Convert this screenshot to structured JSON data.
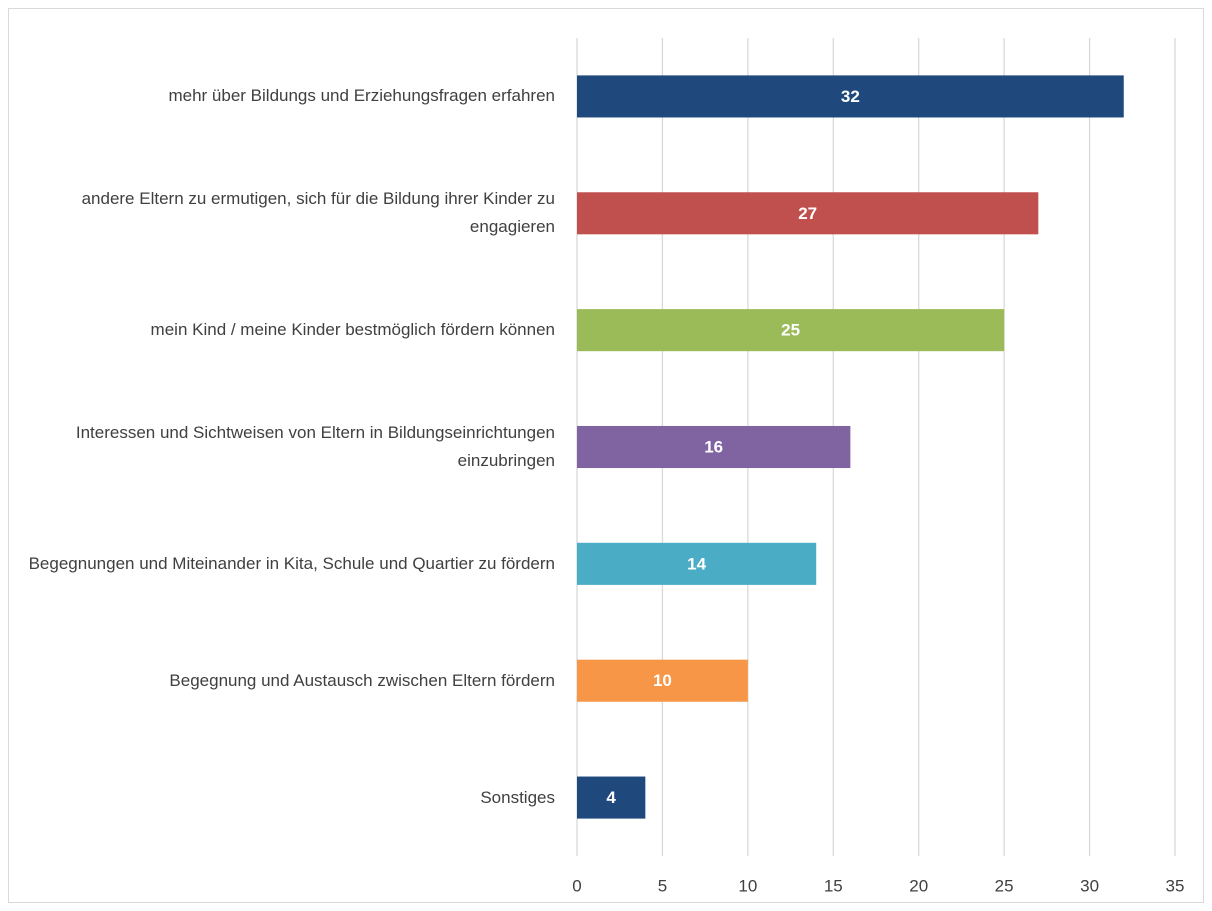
{
  "chart_data": {
    "type": "bar",
    "orientation": "horizontal",
    "categories": [
      "mehr über Bildungs und Erziehungsfragen erfahren",
      "andere Eltern zu ermutigen, sich für die Bildung ihrer Kinder zu engagieren",
      "mein Kind / meine Kinder bestmöglich fördern können",
      "Interessen und Sichtweisen von Eltern in Bildungseinrichtungen einzubringen",
      "Begegnungen und Miteinander in Kita, Schule und Quartier zu fördern",
      "Begegnung und Austausch zwischen Eltern fördern",
      "Sonstiges"
    ],
    "values": [
      32,
      27,
      25,
      16,
      14,
      10,
      4
    ],
    "colors": [
      "#1f497d",
      "#c0504d",
      "#9bbb59",
      "#8064a2",
      "#4bacc6",
      "#f79646",
      "#1f497d"
    ],
    "xlim": [
      0,
      35
    ],
    "xticks": [
      0,
      5,
      10,
      15,
      20,
      25,
      30,
      35
    ],
    "grid": true,
    "data_labels": true
  }
}
